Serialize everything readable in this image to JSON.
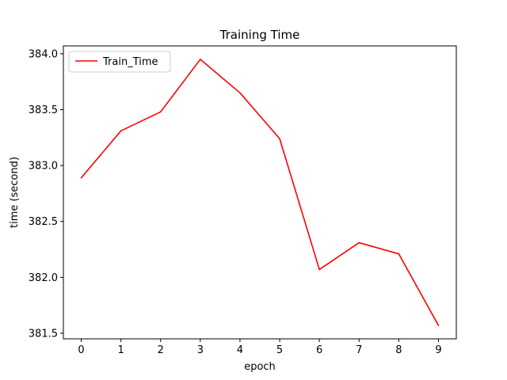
{
  "chart_data": {
    "type": "line",
    "title": "Training Time",
    "xlabel": "epoch",
    "ylabel": "time (second)",
    "x": [
      0,
      1,
      2,
      3,
      4,
      5,
      6,
      7,
      8,
      9
    ],
    "series": [
      {
        "name": "Train_Time",
        "color": "#ff0000",
        "values": [
          382.89,
          383.31,
          383.48,
          383.95,
          383.65,
          383.24,
          382.07,
          382.31,
          382.21,
          381.57
        ]
      }
    ],
    "xlim": [
      -0.45,
      9.45
    ],
    "ylim": [
      381.45,
      384.07
    ],
    "xticks": [
      "0",
      "1",
      "2",
      "3",
      "4",
      "5",
      "6",
      "7",
      "8",
      "9"
    ],
    "yticks": [
      "381.5",
      "382.0",
      "382.5",
      "383.0",
      "383.5",
      "384.0"
    ],
    "legend": "top-left",
    "grid": false
  }
}
